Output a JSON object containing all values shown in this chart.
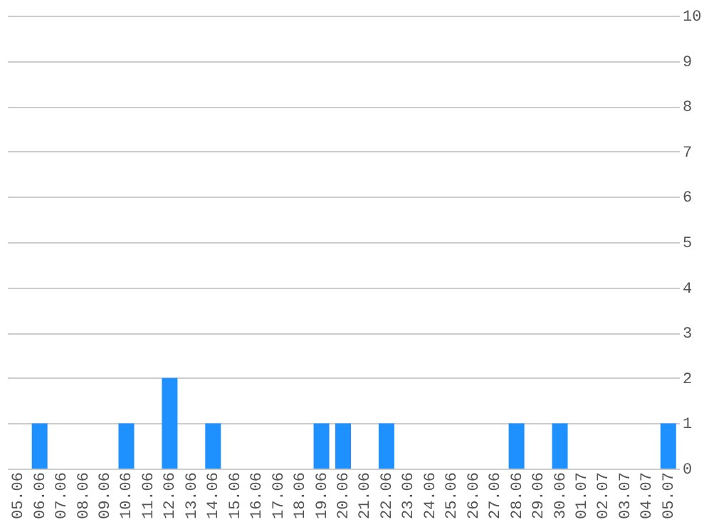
{
  "chart_data": {
    "type": "bar",
    "categories": [
      "05.06",
      "06.06",
      "07.06",
      "08.06",
      "09.06",
      "10.06",
      "11.06",
      "12.06",
      "13.06",
      "14.06",
      "15.06",
      "16.06",
      "17.06",
      "18.06",
      "19.06",
      "20.06",
      "21.06",
      "22.06",
      "23.06",
      "24.06",
      "25.06",
      "26.06",
      "27.06",
      "28.06",
      "29.06",
      "30.06",
      "01.07",
      "02.07",
      "03.07",
      "04.07",
      "05.07"
    ],
    "values": [
      0,
      1,
      0,
      0,
      0,
      1,
      0,
      2,
      0,
      1,
      0,
      0,
      0,
      0,
      1,
      1,
      0,
      1,
      0,
      0,
      0,
      0,
      0,
      1,
      0,
      1,
      0,
      0,
      0,
      0,
      1
    ],
    "color": "#1e90ff",
    "ylim": [
      0,
      10
    ],
    "yticks": [
      0,
      1,
      2,
      3,
      4,
      5,
      6,
      7,
      8,
      9,
      10
    ],
    "grid": "y"
  }
}
